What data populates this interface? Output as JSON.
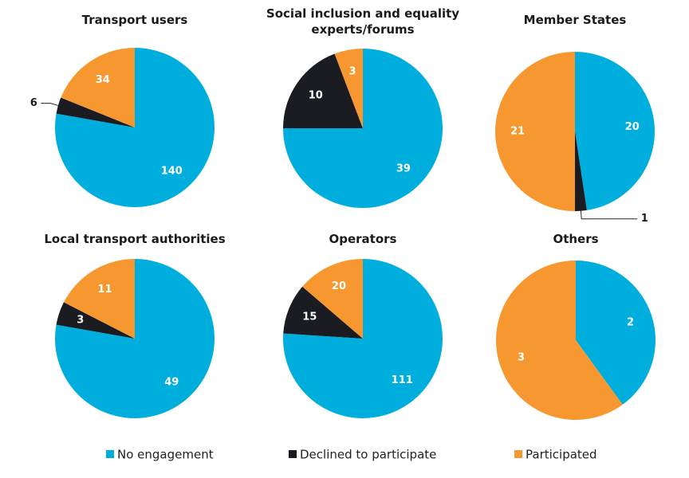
{
  "chart_data": [
    {
      "type": "pie",
      "title": [
        "Transport users"
      ],
      "categories": [
        "No engagement",
        "Declined to participate",
        "Participated"
      ],
      "values": [
        140,
        6,
        34
      ]
    },
    {
      "type": "pie",
      "title": [
        "Social inclusion and equality",
        "experts/forums"
      ],
      "categories": [
        "No engagement",
        "Declined to participate",
        "Participated"
      ],
      "values": [
        39,
        10,
        3
      ]
    },
    {
      "type": "pie",
      "title": [
        "Member States"
      ],
      "categories": [
        "No engagement",
        "Declined to participate",
        "Participated"
      ],
      "values": [
        20,
        1,
        21
      ]
    },
    {
      "type": "pie",
      "title": [
        "Local transport authorities"
      ],
      "categories": [
        "No engagement",
        "Declined to participate",
        "Participated"
      ],
      "values": [
        49,
        3,
        11
      ]
    },
    {
      "type": "pie",
      "title": [
        "Operators"
      ],
      "categories": [
        "No engagement",
        "Declined to participate",
        "Participated"
      ],
      "values": [
        111,
        15,
        20
      ]
    },
    {
      "type": "pie",
      "title": [
        "Others"
      ],
      "categories": [
        "No engagement",
        "Declined to participate",
        "Participated"
      ],
      "values": [
        2,
        0,
        3
      ]
    }
  ],
  "legend": {
    "placement": "bottom",
    "items": [
      {
        "label": "No engagement",
        "color": "#00AEDE"
      },
      {
        "label": "Declined to participate",
        "color": "#1B1B22"
      },
      {
        "label": "Participated",
        "color": "#F6982F"
      }
    ]
  }
}
